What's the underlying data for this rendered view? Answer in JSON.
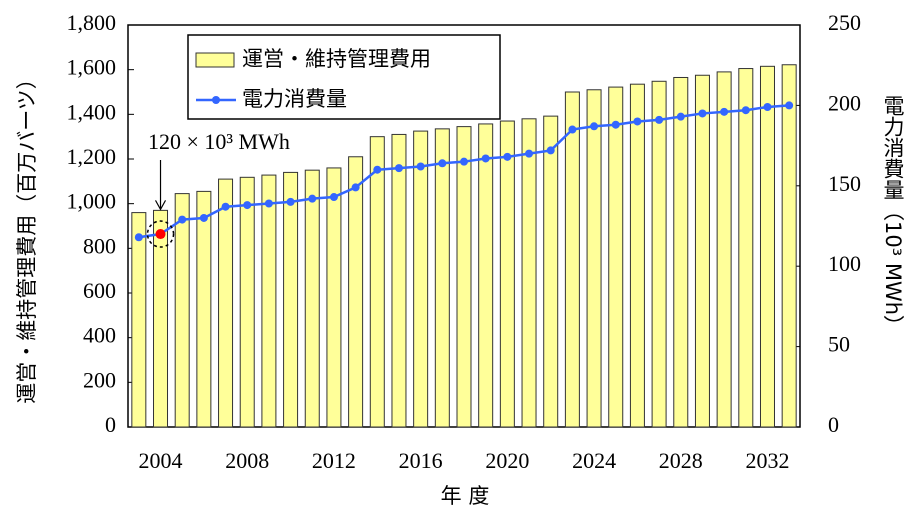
{
  "chart_data": {
    "type": "bar",
    "categories": [
      null,
      "2004",
      null,
      null,
      null,
      "2008",
      null,
      null,
      null,
      "2012",
      null,
      null,
      null,
      "2016",
      null,
      null,
      null,
      "2020",
      null,
      null,
      null,
      "2024",
      null,
      null,
      null,
      "2028",
      null,
      null,
      null,
      "2032",
      null
    ],
    "series": [
      {
        "name": "運営・維持管理費用",
        "type": "bar",
        "axis": "y",
        "color": "#ffff99",
        "values": [
          960,
          970,
          1045,
          1055,
          1110,
          1118,
          1128,
          1140,
          1150,
          1160,
          1210,
          1300,
          1310,
          1325,
          1335,
          1345,
          1357,
          1370,
          1380,
          1392,
          1500,
          1510,
          1522,
          1535,
          1548,
          1565,
          1575,
          1590,
          1605,
          1615,
          1622
        ]
      },
      {
        "name": "電力消費量",
        "type": "line",
        "axis": "y2",
        "color": "#3366ff",
        "values": [
          118,
          120,
          129,
          130,
          137,
          138,
          139,
          140,
          142,
          143,
          149,
          160,
          161,
          162,
          164,
          165,
          167,
          168,
          170,
          172,
          185,
          187,
          188,
          190,
          191,
          193,
          195,
          196,
          197,
          199,
          200
        ]
      }
    ],
    "ylabel": "運営・維持管理費用（百万バーツ）",
    "y2label": "電力消費量（10³ MWh）",
    "xlabel": "年 度",
    "ylim": [
      0,
      1800
    ],
    "yticks": [
      0,
      200,
      400,
      600,
      800,
      {
        "value": 1000,
        "label": "1,000"
      },
      {
        "value": 1200,
        "label": "1,200"
      },
      {
        "value": 1400,
        "label": "1,400"
      },
      {
        "value": 1600,
        "label": "1,600"
      },
      {
        "value": 1800,
        "label": "1,800"
      }
    ],
    "y2lim": [
      0,
      250
    ],
    "y2ticks": [
      0,
      50,
      100,
      150,
      200,
      250
    ],
    "annotation": {
      "text": "120 × 10³ MWh",
      "index": 1,
      "color": "#ff0000"
    },
    "legend": "upper left"
  }
}
